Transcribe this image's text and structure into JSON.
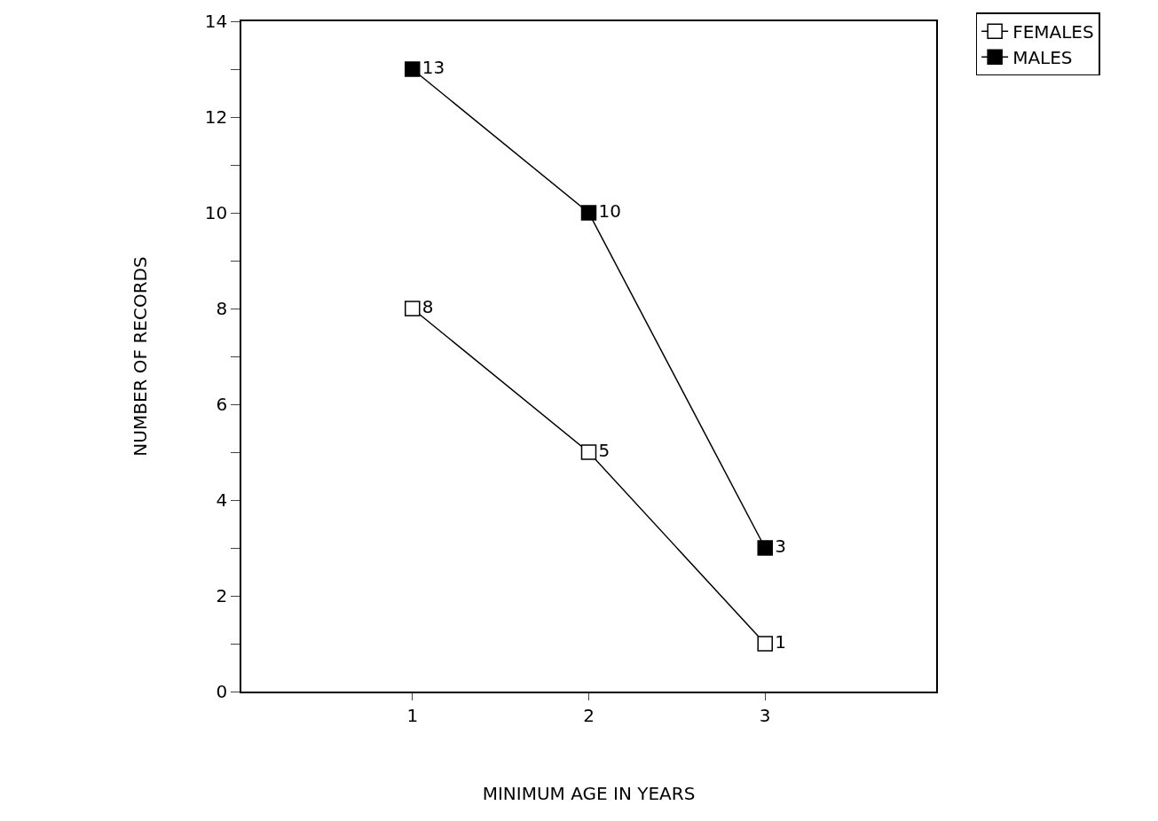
{
  "chart_data": {
    "type": "line",
    "xlabel": "MINIMUM AGE IN YEARS",
    "ylabel": "NUMBER OF RECORDS",
    "x": [
      1,
      2,
      3
    ],
    "series": [
      {
        "name": "FEMALES",
        "color": "#ffffff",
        "values": [
          8,
          5,
          1
        ]
      },
      {
        "name": "MALES",
        "color": "#000000",
        "values": [
          13,
          10,
          3
        ]
      }
    ],
    "xlim": [
      0.03,
      3.97
    ],
    "xticks": [
      1,
      2,
      3
    ],
    "ylim": [
      0,
      14
    ],
    "yticks": [
      0,
      {
        "value": 1,
        "label": null
      },
      2,
      {
        "value": 3,
        "label": null
      },
      4,
      {
        "value": 5,
        "label": null
      },
      6,
      {
        "value": 7,
        "label": null
      },
      8,
      {
        "value": 9,
        "label": null
      },
      10,
      {
        "value": 11,
        "label": null
      },
      12,
      {
        "value": 13,
        "label": null
      },
      14
    ],
    "grid": false,
    "legend": "top right",
    "marker": "square",
    "line_style": "solid",
    "data_labels": true
  }
}
